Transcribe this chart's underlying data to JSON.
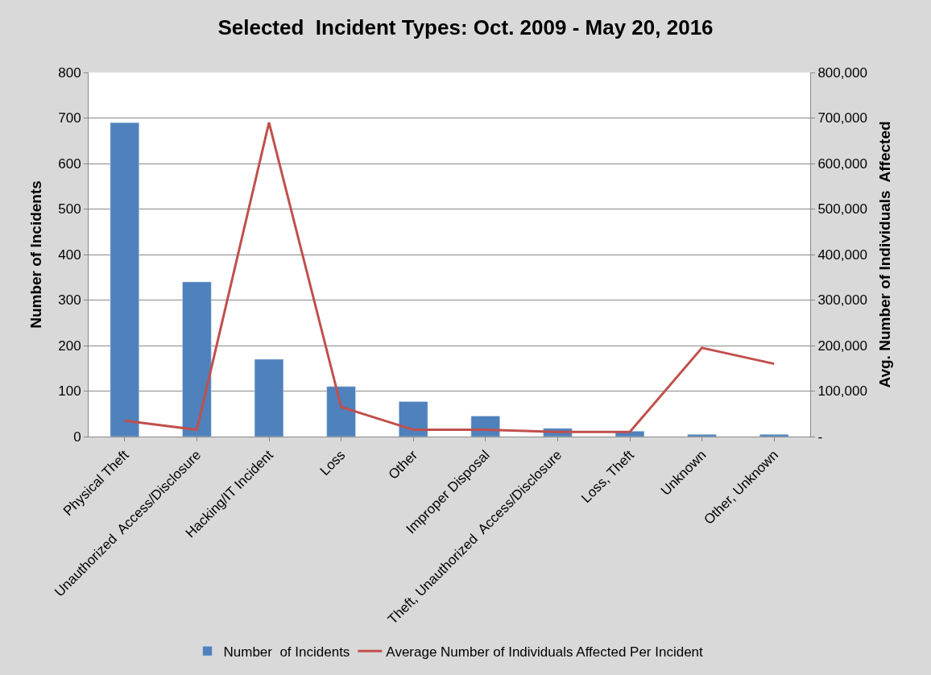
{
  "chart_data": {
    "type": "bar",
    "title": "Selected  Incident Types: Oct. 2009 - May 20, 2016",
    "categories": [
      "Physical Theft",
      "Unauthorized  Access/Disclosure",
      "Hacking/IT Incident",
      "Loss",
      "Other",
      "Improper Disposal",
      "Theft, Unauthorized  Access/Disclosure",
      "Loss, Theft",
      "Unknown",
      "Other, Unknown"
    ],
    "series": [
      {
        "name": "Number  of Incidents",
        "color": "#4f81bd",
        "values": [
          690,
          340,
          170,
          110,
          77,
          45,
          18,
          12,
          5,
          5
        ]
      },
      {
        "name": "Average Number of Individuals Affected Per Incident",
        "type": "line",
        "axis": "y2",
        "color": "#c0504d",
        "values": [
          35000,
          15000,
          690000,
          65000,
          15000,
          15000,
          10000,
          10000,
          195000,
          160000
        ]
      }
    ],
    "ylabel": "Number of Incidents",
    "y2label": "Avg. Number of Individuals  Affected",
    "ylim": [
      0,
      800
    ],
    "yticks": [
      0,
      100,
      200,
      300,
      400,
      500,
      600,
      700,
      800
    ],
    "y2lim": [
      0,
      800000
    ],
    "y2ticks": [
      {
        "value": 0,
        "label": "-"
      },
      {
        "value": 100000,
        "label": "100,000"
      },
      {
        "value": 200000,
        "label": "200,000"
      },
      {
        "value": 300000,
        "label": "300,000"
      },
      {
        "value": 400000,
        "label": "400,000"
      },
      {
        "value": 500000,
        "label": "500,000"
      },
      {
        "value": 600000,
        "label": "600,000"
      },
      {
        "value": 700000,
        "label": "700,000"
      },
      {
        "value": 800000,
        "label": "800,000"
      }
    ],
    "grid": "y",
    "legend": "bottom",
    "marker": "none",
    "line_style": "solid"
  }
}
